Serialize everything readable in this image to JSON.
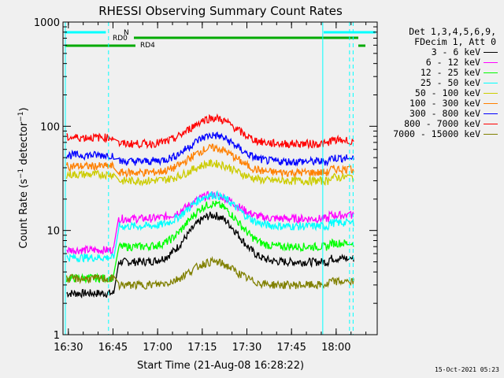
{
  "chart_data": {
    "type": "line",
    "title": "RHESSI Observing Summary Count Rates",
    "xlabel": "Start Time (21-Aug-08 16:28:22)",
    "ylabel": "Count Rate (s⁻¹ detector⁻¹)",
    "ylabel_main": "Count Rate (s",
    "ylabel_sup1": "−1",
    "ylabel_mid": " detector",
    "ylabel_sup2": "−1",
    "ylabel_end": ")",
    "yscale": "log",
    "ylim": [
      1,
      1000
    ],
    "xlim_minutes": [
      16.47,
      18.23
    ],
    "x_tick_labels": [
      "16:30",
      "16:45",
      "17:00",
      "17:15",
      "17:30",
      "17:45",
      "18:00"
    ],
    "x_tick_values": [
      16.5,
      16.75,
      17.0,
      17.25,
      17.5,
      17.75,
      18.0
    ],
    "y_tick_labels": [
      "1",
      "10",
      "100",
      "1000"
    ],
    "y_tick_values": [
      1,
      10,
      100,
      1000
    ],
    "legend_header": [
      "Det 1,3,4,5,6,9,",
      "FDecim 1, Att 0"
    ],
    "series": [
      {
        "name": "3 - 6 keV",
        "color": "#000000",
        "base": 5,
        "peak": 14
      },
      {
        "name": "6 - 12 keV",
        "color": "#ff00ff",
        "base": 13,
        "peak": 22
      },
      {
        "name": "12 - 25 keV",
        "color": "#00ff00",
        "base": 7,
        "peak": 18
      },
      {
        "name": "25 - 50 keV",
        "color": "#00ffff",
        "base": 11,
        "peak": 22
      },
      {
        "name": "50 - 100 keV",
        "color": "#cccc00",
        "base": 30,
        "peak": 44
      },
      {
        "name": "100 - 300 keV",
        "color": "#ff8000",
        "base": 36,
        "peak": 62
      },
      {
        "name": "300 - 800 keV",
        "color": "#0000ff",
        "base": 46,
        "peak": 82
      },
      {
        "name": "800 - 7000 keV",
        "color": "#ff0000",
        "base": 68,
        "peak": 120
      },
      {
        "name": "7000 - 15000 keV",
        "color": "#808000",
        "base": 3,
        "peak": 5
      }
    ],
    "flags": [
      {
        "name": "N",
        "color": "#00ffff"
      },
      {
        "name": "RD0",
        "color": "#00aa00"
      },
      {
        "name": "RD4",
        "color": "#00aa00"
      }
    ]
  },
  "timestamp": "15-Oct-2021 05:23"
}
